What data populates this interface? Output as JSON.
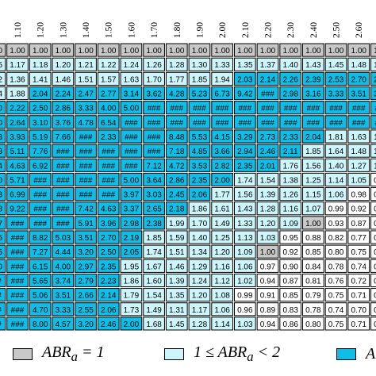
{
  "chart_data": {
    "type": "heatmap",
    "title": "",
    "xlabel": "",
    "ylabel": "",
    "columns": [
      "1.00",
      "1.10",
      "1.20",
      "1.30",
      "1.40",
      "1.50",
      "1.60",
      "1.70",
      "1.80",
      "1.90",
      "2.00",
      "2.10",
      "2.20",
      "2.30",
      "2.40",
      "2.50",
      "2.60",
      "2.70"
    ],
    "cells": [
      [
        "1.00",
        "1.00",
        "1.00",
        "1.00",
        "1.00",
        "1.00",
        "1.00",
        "1.00",
        "1.00",
        "1.00",
        "1.00",
        "1.00",
        "1.00",
        "1.00",
        "1.00",
        "1.00",
        "1.00",
        "1.00"
      ],
      [
        "1.15",
        "1.17",
        "1.18",
        "1.20",
        "1.21",
        "1.22",
        "1.24",
        "1.26",
        "1.28",
        "1.30",
        "1.33",
        "1.35",
        "1.37",
        "1.40",
        "1.43",
        "1.45",
        "1.48",
        "1.51"
      ],
      [
        "1.32",
        "1.36",
        "1.41",
        "1.46",
        "1.51",
        "1.57",
        "1.63",
        "1.70",
        "1.77",
        "1.85",
        "1.94",
        "2.03",
        "2.14",
        "2.26",
        "2.39",
        "2.53",
        "2.70",
        "2.89"
      ],
      [
        "1.74",
        "1.88",
        "2.04",
        "2.24",
        "2.47",
        "2.77",
        "3.14",
        "3.62",
        "4.28",
        "5.23",
        "6.73",
        "9.42",
        "###",
        "2.98",
        "3.16",
        "3.33",
        "3.51",
        "3.68"
      ],
      [
        "2.00",
        "2.22",
        "2.50",
        "2.86",
        "3.33",
        "4.00",
        "5.00",
        "###",
        "###",
        "###",
        "###",
        "###",
        "###",
        "###",
        "###",
        "###",
        "###",
        "###"
      ],
      [
        "2.30",
        "2.64",
        "3.10",
        "3.76",
        "4.78",
        "6.54",
        "###",
        "###",
        "###",
        "###",
        "###",
        "###",
        "###",
        "###",
        "###",
        "###",
        "###",
        "###"
      ],
      [
        "3.03",
        "3.93",
        "5.19",
        "7.66",
        "###",
        "2.33",
        "###",
        "###",
        "8.48",
        "5.53",
        "4.15",
        "3.29",
        "2.73",
        "2.33",
        "2.04",
        "1.81",
        "1.63",
        "1.49"
      ],
      [
        "3.53",
        "5.11",
        "7.76",
        "###",
        "###",
        "###",
        "###",
        "###",
        "7.18",
        "4.85",
        "3.66",
        "2.94",
        "2.46",
        "2.11",
        "1.85",
        "1.64",
        "1.48",
        "1.34"
      ],
      [
        "3.84",
        "4.63",
        "6.92",
        "###",
        "###",
        "###",
        "###",
        "7.12",
        "4.72",
        "3.53",
        "2.82",
        "2.35",
        "2.01",
        "1.76",
        "1.56",
        "1.40",
        "1.27",
        "1.16"
      ],
      [
        "4.00",
        "5.71",
        "###",
        "###",
        "###",
        "###",
        "5.00",
        "3.64",
        "2.86",
        "2.35",
        "2.00",
        "1.74",
        "1.54",
        "1.38",
        "1.25",
        "1.14",
        "1.05",
        "0.97"
      ],
      [
        "5.23",
        "6.99",
        "###",
        "###",
        "###",
        "###",
        "3.97",
        "3.03",
        "2.45",
        "2.06",
        "1.77",
        "1.56",
        "1.39",
        "1.26",
        "1.15",
        "1.06",
        "0.98",
        "0.91"
      ],
      [
        "5.88",
        "9.22",
        "###",
        "###",
        "7.42",
        "4.63",
        "3.37",
        "2.65",
        "2.18",
        "1.86",
        "1.61",
        "1.43",
        "1.28",
        "1.16",
        "1.07",
        "0.99",
        "0.92",
        "0.86"
      ],
      [
        "6.67",
        "###",
        "###",
        "###",
        "5.91",
        "3.96",
        "2.98",
        "2.38",
        "1.99",
        "1.70",
        "1.49",
        "1.33",
        "1.20",
        "1.09",
        "1.00",
        "0.93",
        "0.87",
        "0.82"
      ],
      [
        "7.65",
        "###",
        "8.82",
        "5.03",
        "3.51",
        "2.70",
        "2.19",
        "1.85",
        "1.59",
        "1.40",
        "1.25",
        "1.13",
        "1.03",
        "0.95",
        "0.88",
        "0.82",
        "0.77",
        "0.72"
      ],
      [
        "8.85",
        "###",
        "7.27",
        "4.44",
        "3.20",
        "2.50",
        "2.05",
        "1.74",
        "1.51",
        "1.34",
        "1.20",
        "1.09",
        "1.00",
        "0.92",
        "0.85",
        "0.80",
        "0.75",
        "0.71"
      ],
      [
        "9.60",
        "###",
        "6.15",
        "4.00",
        "2.97",
        "2.35",
        "1.95",
        "1.67",
        "1.46",
        "1.29",
        "1.16",
        "1.06",
        "0.97",
        "0.90",
        "0.84",
        "0.78",
        "0.74",
        "0.70"
      ],
      [
        "###",
        "###",
        "5.65",
        "3.74",
        "2.79",
        "2.23",
        "1.86",
        "1.60",
        "1.39",
        "1.24",
        "1.12",
        "1.02",
        "0.94",
        "0.87",
        "0.81",
        "0.76",
        "0.72",
        "0.69"
      ],
      [
        "###",
        "###",
        "5.06",
        "3.51",
        "2.66",
        "2.14",
        "1.79",
        "1.54",
        "1.35",
        "1.20",
        "1.08",
        "0.99",
        "0.91",
        "0.85",
        "0.79",
        "0.75",
        "0.71",
        "0.68"
      ],
      [
        "###",
        "###",
        "4.70",
        "3.33",
        "2.55",
        "2.06",
        "1.73",
        "1.49",
        "1.31",
        "1.17",
        "1.06",
        "0.96",
        "0.89",
        "0.83",
        "0.78",
        "0.74",
        "0.70",
        "0.67"
      ],
      [
        "###",
        "###",
        "8.00",
        "4.57",
        "3.20",
        "2.46",
        "2.00",
        "1.68",
        "1.45",
        "1.28",
        "1.14",
        "1.03",
        "0.94",
        "0.86",
        "0.80",
        "0.75",
        "0.71",
        "0.68"
      ]
    ],
    "class_rule": "equal to 1 = gray; 1 to 2 = light cyan; above 2 or ### = cyan; below 1 = white",
    "colors": {
      "equal": "#c8c8c8",
      "low": "#ccf6fb",
      "high": "#0fbde6",
      "below": "#ffffff"
    },
    "legend": [
      {
        "key": "equal",
        "label": "ABRa = 1"
      },
      {
        "key": "low",
        "label": "1 ≤ ABRa < 2"
      },
      {
        "key": "high",
        "label": "A"
      }
    ]
  }
}
